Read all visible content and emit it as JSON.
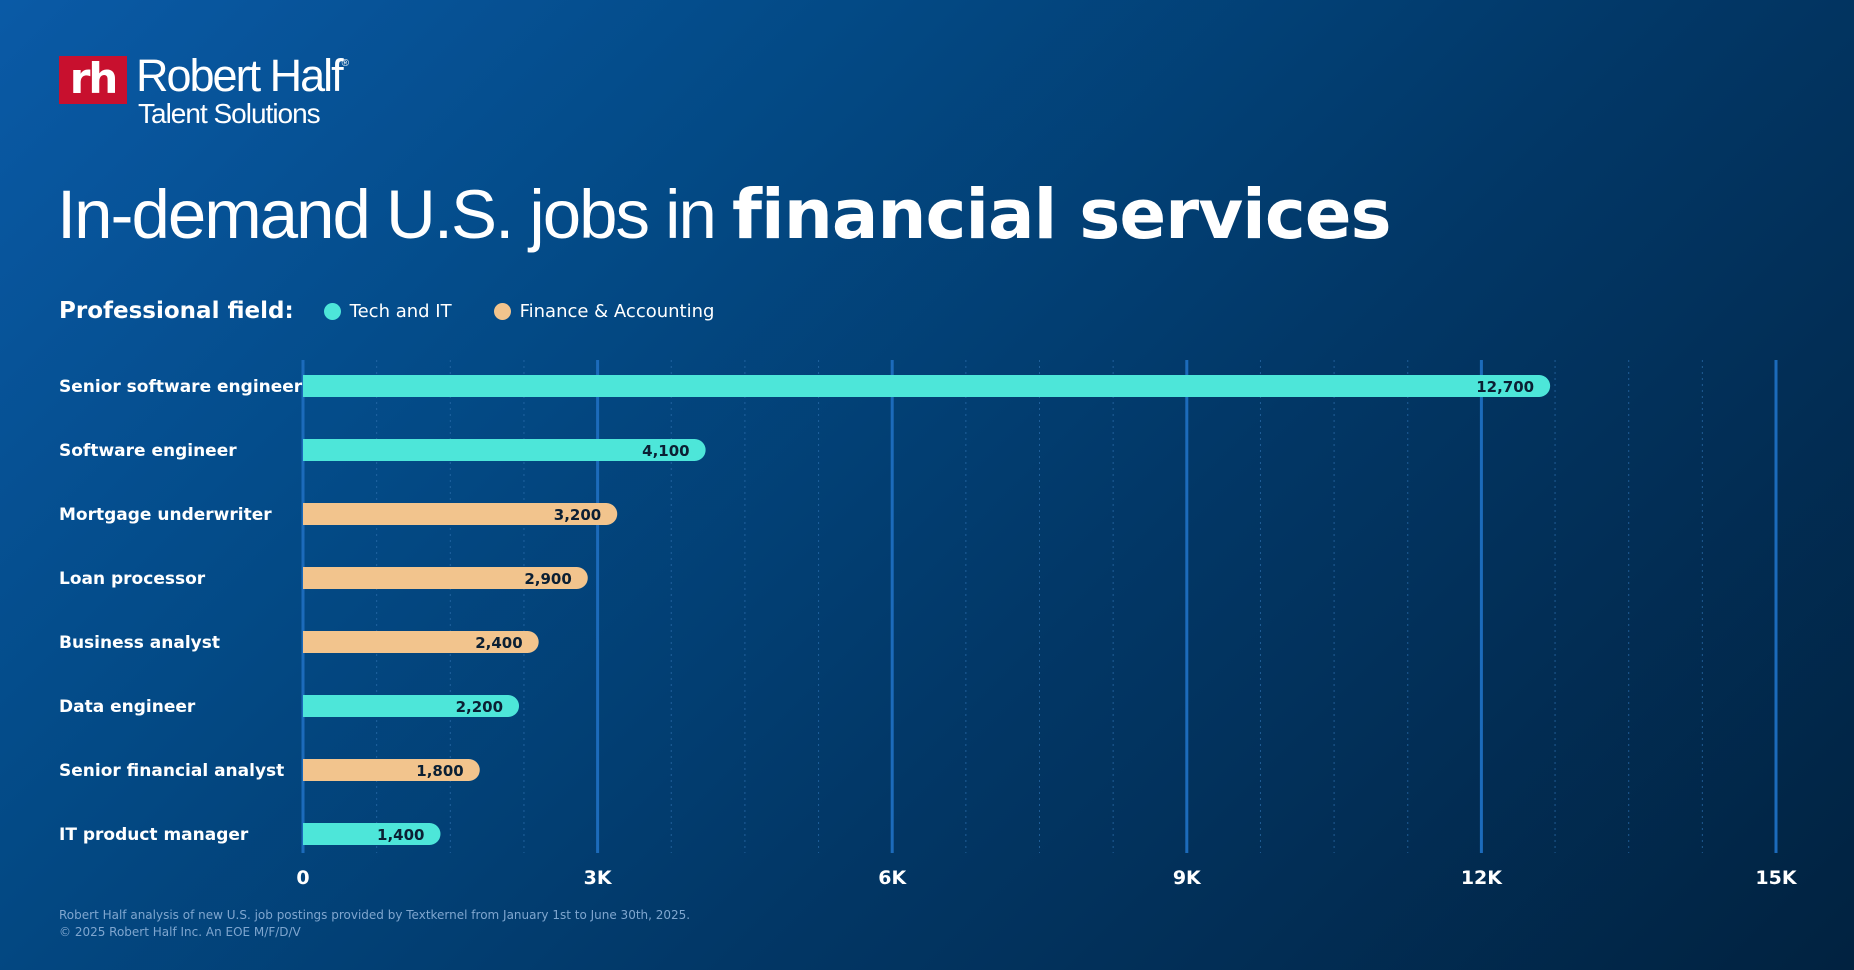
{
  "brand": {
    "mark": "rh",
    "name": "Robert Half",
    "registered": "®",
    "subtitle": "Talent Solutions",
    "mark_color": "#c8102e"
  },
  "title": {
    "regular": "In-demand U.S. jobs in ",
    "bold": "financial services"
  },
  "legend": {
    "label": "Professional field:",
    "items": [
      {
        "label": "Tech and IT",
        "color": "#4de6d9"
      },
      {
        "label": "Finance & Accounting",
        "color": "#f2c48d"
      }
    ]
  },
  "chart_data": {
    "type": "bar",
    "orientation": "horizontal",
    "categories": [
      "Senior software engineer",
      "Software engineer",
      "Mortgage underwriter",
      "Loan processor",
      "Business analyst",
      "Data engineer",
      "Senior financial analyst",
      "IT product manager"
    ],
    "values": [
      12700,
      4100,
      3200,
      2900,
      2400,
      2200,
      1800,
      1400
    ],
    "value_labels": [
      "12,700",
      "4,100",
      "3,200",
      "2,900",
      "2,400",
      "2,200",
      "1,800",
      "1,400"
    ],
    "field": [
      "Tech and IT",
      "Tech and IT",
      "Finance & Accounting",
      "Finance & Accounting",
      "Finance & Accounting",
      "Tech and IT",
      "Finance & Accounting",
      "Tech and IT"
    ],
    "xlim": [
      0,
      15000
    ],
    "xticks": [
      0,
      3000,
      6000,
      9000,
      12000,
      15000
    ],
    "xtick_labels": [
      "0",
      "3K",
      "6K",
      "9K",
      "12K",
      "15K"
    ],
    "grid": "major solid, minor dotted",
    "legend_position": "top-left"
  },
  "footnote": {
    "line1": "Robert Half analysis of new U.S. job postings provided by Textkernel from January 1st to June 30th, 2025.",
    "line2": "© 2025 Robert Half Inc. An EOE M/F/D/V"
  }
}
